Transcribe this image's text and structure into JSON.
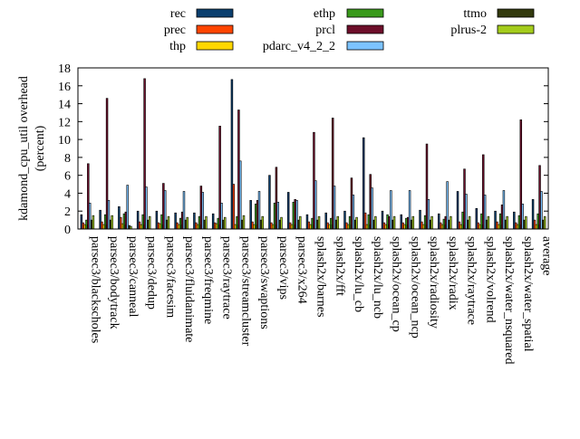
{
  "chart_data": {
    "type": "bar",
    "ylabel": "kdamond_cpu_util overhead (percent)",
    "ylabel_lines": [
      "kdamond_cpu_util overhead",
      "(percent)"
    ],
    "ylim": [
      0,
      18
    ],
    "yticks": [
      0,
      2,
      4,
      6,
      8,
      10,
      12,
      14,
      16,
      18
    ],
    "grid": false,
    "legend_placement": "top",
    "categories": [
      "parsec3/blackscholes",
      "parsec3/bodytrack",
      "parsec3/canneal",
      "parsec3/dedup",
      "parsec3/facesim",
      "parsec3/fluidanimate",
      "parsec3/freqmine",
      "parsec3/raytrace",
      "parsec3/streamcluster",
      "parsec3/swaptions",
      "parsec3/vips",
      "parsec3/x264",
      "splash2x/barnes",
      "splash2x/fft",
      "splash2x/lu_cb",
      "splash2x/lu_ncb",
      "splash2x/ocean_cp",
      "splash2x/ocean_ncp",
      "splash2x/radiosity",
      "splash2x/radix",
      "splash2x/raytrace",
      "splash2x/volrend",
      "splash2x/water_nsquared",
      "splash2x/water_spatial",
      "average"
    ],
    "series": [
      {
        "name": "rec",
        "color": "#0b3f6e",
        "values": [
          1.6,
          2.1,
          2.5,
          2.0,
          2.0,
          1.8,
          1.8,
          1.7,
          16.7,
          3.2,
          6.0,
          4.1,
          1.6,
          1.8,
          2.0,
          10.2,
          2.0,
          1.6,
          2.1,
          1.7,
          4.2,
          2.3,
          2.0,
          1.9,
          3.3
        ]
      },
      {
        "name": "prec",
        "color": "#ff4500",
        "values": [
          0.7,
          0.8,
          1.3,
          0.8,
          0.7,
          0.7,
          0.7,
          0.7,
          5.0,
          0.8,
          0.7,
          0.7,
          0.8,
          0.7,
          0.7,
          1.8,
          0.7,
          0.7,
          0.8,
          0.7,
          0.8,
          0.7,
          0.8,
          0.7,
          1.0
        ]
      },
      {
        "name": "thp",
        "color": "#ffd700",
        "values": [
          0.5,
          0.5,
          0.6,
          0.5,
          0.6,
          0.5,
          0.5,
          0.6,
          0.5,
          0.5,
          0.5,
          0.5,
          0.5,
          0.5,
          0.5,
          0.5,
          0.5,
          0.5,
          0.5,
          0.5,
          0.5,
          0.5,
          0.5,
          0.5,
          0.5
        ]
      },
      {
        "name": "ethp",
        "color": "#3a9a1c",
        "values": [
          1.0,
          1.6,
          1.7,
          1.6,
          1.6,
          1.2,
          1.4,
          1.2,
          1.4,
          2.8,
          2.9,
          3.0,
          1.2,
          1.2,
          1.4,
          1.6,
          1.6,
          1.2,
          1.5,
          1.1,
          1.9,
          1.7,
          1.7,
          1.5,
          1.7
        ]
      },
      {
        "name": "prcl",
        "color": "#6d0e2a",
        "values": [
          7.3,
          14.6,
          1.9,
          16.8,
          5.1,
          1.9,
          4.8,
          11.5,
          13.3,
          3.2,
          6.9,
          3.3,
          10.8,
          12.4,
          5.7,
          6.1,
          1.4,
          1.3,
          9.5,
          1.4,
          6.7,
          8.3,
          2.7,
          12.2,
          7.1
        ]
      },
      {
        "name": "pdarc_v4_2_2",
        "color": "#7cc3ff",
        "values": [
          2.9,
          3.2,
          4.9,
          4.7,
          4.3,
          4.2,
          4.1,
          2.9,
          7.6,
          4.2,
          3.0,
          3.2,
          5.4,
          4.8,
          3.8,
          4.6,
          4.3,
          4.3,
          3.3,
          5.3,
          3.9,
          3.8,
          4.3,
          2.8,
          4.2
        ]
      },
      {
        "name": "ttmo",
        "color": "#333a0e",
        "values": [
          1.0,
          1.0,
          0.4,
          1.0,
          1.0,
          1.0,
          1.0,
          1.0,
          1.0,
          1.0,
          1.0,
          1.0,
          1.0,
          1.0,
          1.0,
          1.0,
          1.0,
          1.0,
          1.0,
          1.0,
          1.0,
          1.0,
          1.0,
          1.0,
          1.0
        ]
      },
      {
        "name": "plrus-2",
        "color": "#a4cc1c",
        "values": [
          1.5,
          1.5,
          0.3,
          1.4,
          1.4,
          1.3,
          1.4,
          1.3,
          1.5,
          1.4,
          1.3,
          1.4,
          1.4,
          1.4,
          1.3,
          1.4,
          1.4,
          1.4,
          1.4,
          1.4,
          1.4,
          1.4,
          1.4,
          1.4,
          1.4
        ]
      }
    ]
  }
}
